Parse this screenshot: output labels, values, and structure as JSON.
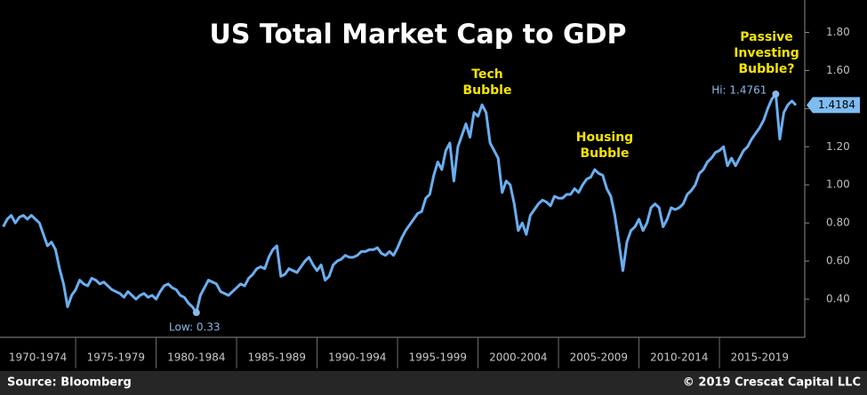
{
  "chart_data": {
    "type": "line",
    "title": "US Total Market Cap to GDP",
    "source": "Source: Bloomberg",
    "copyright": "© 2019 Crescat Capital LLC",
    "color": "#6aaef0",
    "annotations": {
      "tech": [
        "Tech",
        "Bubble"
      ],
      "housing": [
        "Housing",
        "Bubble"
      ],
      "passive": [
        "Passive",
        "Investing",
        "Bubble?"
      ],
      "low": "Low: 0.33",
      "high": "Hi: 1.4761"
    },
    "xlim": [
      1970.3,
      2020.3
    ],
    "xticks": [
      {
        "value": 1970,
        "label": "1970-1974"
      },
      {
        "value": 1975,
        "label": "1975-1979"
      },
      {
        "value": 1980,
        "label": "1980-1984"
      },
      {
        "value": 1985,
        "label": "1985-1989"
      },
      {
        "value": 1990,
        "label": "1990-1994"
      },
      {
        "value": 1995,
        "label": "1995-1999"
      },
      {
        "value": 2000,
        "label": "2000-2004"
      },
      {
        "value": 2005,
        "label": "2005-2009"
      },
      {
        "value": 2010,
        "label": "2010-2014"
      },
      {
        "value": 2015,
        "label": "2015-2019"
      }
    ],
    "ylim": [
      0.2,
      1.97
    ],
    "yticks": [
      {
        "value": 0.4,
        "label": "0.40"
      },
      {
        "value": 0.6,
        "label": "0.60"
      },
      {
        "value": 0.8,
        "label": "0.80"
      },
      {
        "value": 1.0,
        "label": "1.00"
      },
      {
        "value": 1.2,
        "label": "1.20"
      },
      {
        "value": 1.4,
        "label": "1.40"
      },
      {
        "value": 1.6,
        "label": "1.60"
      },
      {
        "value": 1.8,
        "label": "1.80"
      }
    ],
    "x": [
      1970.5,
      1970.75,
      1971,
      1971.25,
      1971.5,
      1971.75,
      1972,
      1972.25,
      1972.5,
      1972.75,
      1973,
      1973.25,
      1973.5,
      1973.75,
      1974,
      1974.25,
      1974.5,
      1974.75,
      1975,
      1975.25,
      1975.5,
      1975.75,
      1976,
      1976.25,
      1976.5,
      1976.75,
      1977,
      1977.25,
      1977.5,
      1977.75,
      1978,
      1978.25,
      1978.5,
      1978.75,
      1979,
      1979.25,
      1979.5,
      1979.75,
      1980,
      1980.25,
      1980.5,
      1980.75,
      1981,
      1981.25,
      1981.5,
      1981.75,
      1982,
      1982.25,
      1982.5,
      1982.75,
      1983,
      1983.25,
      1983.5,
      1983.75,
      1984,
      1984.25,
      1984.5,
      1984.75,
      1985,
      1985.25,
      1985.5,
      1985.75,
      1986,
      1986.25,
      1986.5,
      1986.75,
      1987,
      1987.25,
      1987.5,
      1987.75,
      1988,
      1988.25,
      1988.5,
      1988.75,
      1989,
      1989.25,
      1989.5,
      1989.75,
      1990,
      1990.25,
      1990.5,
      1990.75,
      1991,
      1991.25,
      1991.5,
      1991.75,
      1992,
      1992.25,
      1992.5,
      1992.75,
      1993,
      1993.25,
      1993.5,
      1993.75,
      1994,
      1994.25,
      1994.5,
      1994.75,
      1995,
      1995.25,
      1995.5,
      1995.75,
      1996,
      1996.25,
      1996.5,
      1996.75,
      1997,
      1997.25,
      1997.5,
      1997.75,
      1998,
      1998.25,
      1998.5,
      1998.75,
      1999,
      1999.25,
      1999.5,
      1999.75,
      2000,
      2000.25,
      2000.5,
      2000.75,
      2001,
      2001.25,
      2001.5,
      2001.75,
      2002,
      2002.25,
      2002.5,
      2002.75,
      2003,
      2003.25,
      2003.5,
      2003.75,
      2004,
      2004.25,
      2004.5,
      2004.75,
      2005,
      2005.25,
      2005.5,
      2005.75,
      2006,
      2006.25,
      2006.5,
      2006.75,
      2007,
      2007.25,
      2007.5,
      2007.75,
      2008,
      2008.25,
      2008.5,
      2008.75,
      2009,
      2009.25,
      2009.5,
      2009.75,
      2010,
      2010.25,
      2010.5,
      2010.75,
      2011,
      2011.25,
      2011.5,
      2011.75,
      2012,
      2012.25,
      2012.5,
      2012.75,
      2013,
      2013.25,
      2013.5,
      2013.75,
      2014,
      2014.25,
      2014.5,
      2014.75,
      2015,
      2015.25,
      2015.5,
      2015.75,
      2016,
      2016.25,
      2016.5,
      2016.75,
      2017,
      2017.25,
      2017.5,
      2017.75,
      2018,
      2018.25,
      2018.5,
      2018.75,
      2019,
      2019.25,
      2019.5,
      2019.75
    ],
    "values": [
      0.78,
      0.82,
      0.84,
      0.8,
      0.83,
      0.84,
      0.82,
      0.84,
      0.82,
      0.8,
      0.74,
      0.68,
      0.7,
      0.66,
      0.56,
      0.48,
      0.36,
      0.42,
      0.45,
      0.5,
      0.48,
      0.47,
      0.51,
      0.5,
      0.48,
      0.49,
      0.47,
      0.45,
      0.44,
      0.43,
      0.41,
      0.44,
      0.42,
      0.4,
      0.42,
      0.43,
      0.41,
      0.42,
      0.4,
      0.44,
      0.47,
      0.48,
      0.46,
      0.45,
      0.42,
      0.41,
      0.38,
      0.36,
      0.33,
      0.42,
      0.46,
      0.5,
      0.49,
      0.48,
      0.44,
      0.43,
      0.42,
      0.44,
      0.46,
      0.48,
      0.47,
      0.51,
      0.53,
      0.56,
      0.57,
      0.56,
      0.62,
      0.66,
      0.68,
      0.52,
      0.53,
      0.56,
      0.55,
      0.54,
      0.57,
      0.6,
      0.62,
      0.58,
      0.55,
      0.58,
      0.5,
      0.52,
      0.58,
      0.6,
      0.61,
      0.63,
      0.62,
      0.62,
      0.63,
      0.65,
      0.65,
      0.66,
      0.66,
      0.67,
      0.64,
      0.63,
      0.65,
      0.63,
      0.67,
      0.72,
      0.76,
      0.79,
      0.82,
      0.85,
      0.86,
      0.93,
      0.95,
      1.05,
      1.12,
      1.08,
      1.18,
      1.22,
      1.02,
      1.2,
      1.26,
      1.32,
      1.25,
      1.38,
      1.36,
      1.42,
      1.38,
      1.22,
      1.18,
      1.14,
      0.96,
      1.02,
      1.0,
      0.9,
      0.76,
      0.8,
      0.74,
      0.84,
      0.87,
      0.9,
      0.92,
      0.91,
      0.89,
      0.94,
      0.93,
      0.93,
      0.95,
      0.95,
      0.98,
      0.96,
      1.0,
      1.03,
      1.04,
      1.08,
      1.06,
      1.05,
      0.98,
      0.94,
      0.84,
      0.7,
      0.55,
      0.7,
      0.76,
      0.78,
      0.82,
      0.76,
      0.8,
      0.88,
      0.9,
      0.88,
      0.78,
      0.82,
      0.88,
      0.87,
      0.88,
      0.9,
      0.95,
      0.97,
      1.0,
      1.06,
      1.08,
      1.12,
      1.14,
      1.17,
      1.18,
      1.2,
      1.1,
      1.14,
      1.1,
      1.14,
      1.18,
      1.2,
      1.24,
      1.27,
      1.3,
      1.34,
      1.4,
      1.45,
      1.4761,
      1.24,
      1.38,
      1.42,
      1.44,
      1.4184
    ]
  }
}
